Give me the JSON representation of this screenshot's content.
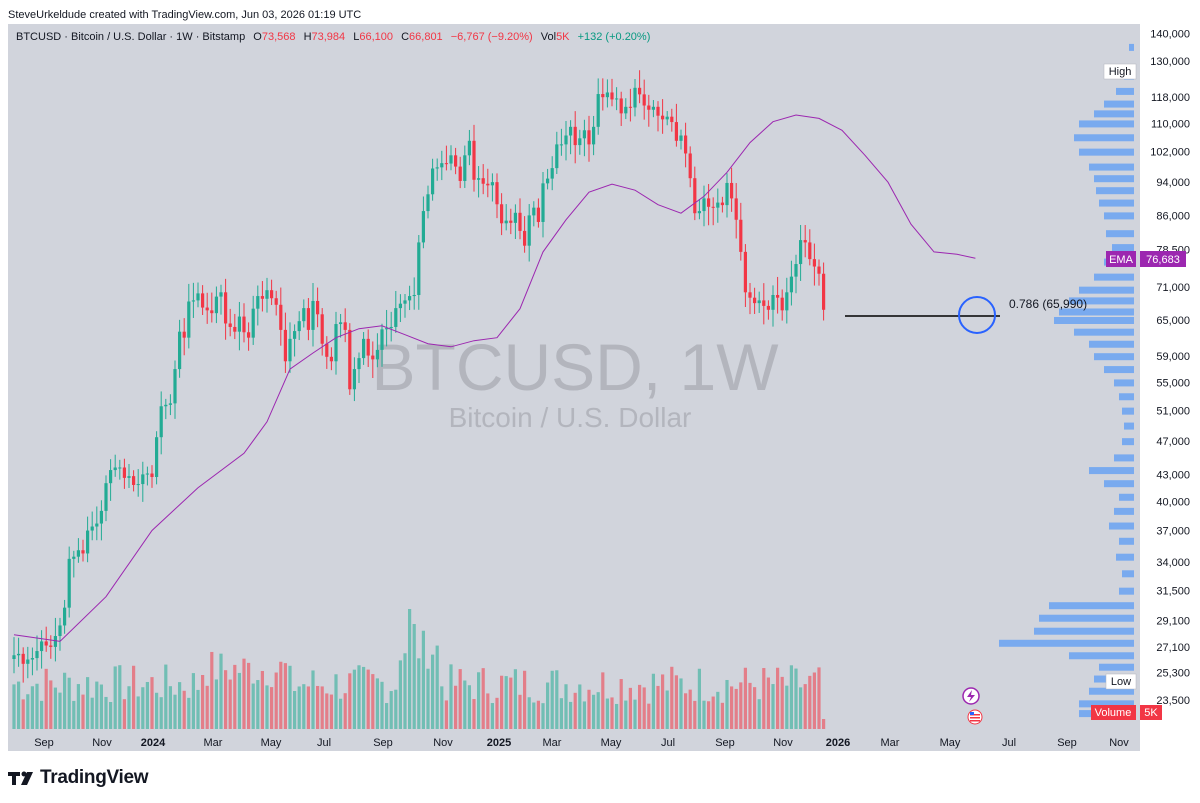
{
  "header": "SteveUrkeldude created with TradingView.com, Jun 03, 2026 01:19 UTC",
  "legend": {
    "symbol": "BTCUSD · Bitcoin / U.S. Dollar · 1W · Bitstamp",
    "o_label": "O",
    "o_value": "73,568",
    "h_label": "H",
    "h_value": "73,984",
    "l_label": "L",
    "l_value": "66,100",
    "c_label": "C",
    "c_value": "66,801",
    "change": "−6,767 (−9.20%)",
    "vol_label": "Vol",
    "vol_value": "5K",
    "vol_change": "+132 (+0.20%)"
  },
  "watermark": {
    "line1": "BTCUSD, 1W",
    "line2": "Bitcoin / U.S. Dollar"
  },
  "fib_label": "0.786 (65,990)",
  "labels": {
    "high": "High",
    "low": "Low",
    "ema": "EMA",
    "ema_value": "76,683",
    "volume": "Volume",
    "volume_value": "5K"
  },
  "footer": {
    "brand": "TradingView"
  },
  "colors": {
    "up": "#22ab94",
    "down": "#f23645",
    "ema": "#9c27b0",
    "profile": "#5b9cf6",
    "fib_line": "#000000",
    "circle": "#2962ff"
  },
  "chart_data": {
    "type": "candlestick",
    "symbol": "BTCUSD",
    "interval": "1W",
    "exchange": "Bitstamp",
    "y_scale": "log",
    "ylim": [
      22500,
      140000
    ],
    "price_ticks": [
      "140,000",
      "130,000",
      "118,000",
      "110,000",
      "102,000",
      "94,000",
      "86,000",
      "78,500",
      "71,000",
      "65,000",
      "59,000",
      "55,000",
      "51,000",
      "47,000",
      "43,000",
      "40,000",
      "37,000",
      "34,000",
      "31,500",
      "29,100",
      "27,100",
      "25,300",
      "23,500"
    ],
    "time_ticks": [
      "Sep",
      "Nov",
      "2024",
      "Mar",
      "May",
      "Jul",
      "Sep",
      "Nov",
      "2025",
      "Mar",
      "May",
      "Jul",
      "Sep",
      "Nov",
      "2026",
      "Mar",
      "May",
      "Jul",
      "Sep",
      "Nov"
    ],
    "close": [
      26500,
      26600,
      25900,
      26200,
      26300,
      26800,
      27500,
      27200,
      27100,
      27900,
      28700,
      30100,
      34300,
      34500,
      35100,
      34800,
      37000,
      37400,
      37700,
      39000,
      42000,
      43500,
      43800,
      43800,
      42600,
      42800,
      41800,
      41900,
      43000,
      43100,
      42700,
      47500,
      51600,
      51800,
      52000,
      57000,
      63000,
      62000,
      68300,
      68500,
      69800,
      67200,
      66700,
      66200,
      69200,
      70000,
      64400,
      63800,
      63000,
      65600,
      62900,
      62000,
      67000,
      69300,
      68800,
      70400,
      68900,
      67700,
      63300,
      58200,
      61800,
      63100,
      64800,
      67100,
      63300,
      68400,
      66000,
      61000,
      58900,
      58200,
      64300,
      64600,
      63300,
      54000,
      57000,
      58700,
      61800,
      59100,
      58500,
      60000,
      63400,
      63600,
      63800,
      67100,
      67900,
      68500,
      69300,
      69500,
      80000,
      87000,
      91000,
      97500,
      97800,
      98900,
      98800,
      101000,
      98000,
      94300,
      101000,
      105000,
      94600,
      95000,
      93600,
      93200,
      94000,
      88600,
      84200,
      84800,
      84300,
      86600,
      82500,
      79300,
      86000,
      87800,
      84500,
      93700,
      94900,
      97600,
      104000,
      104000,
      106500,
      109000,
      103800,
      105700,
      108000,
      104000,
      109000,
      119000,
      118000,
      119500,
      117300,
      117600,
      113000,
      115000,
      114800,
      121000,
      118900,
      115400,
      114100,
      115000,
      112300,
      111200,
      112000,
      110400,
      105000,
      106500,
      101500,
      95000,
      86500,
      87000,
      90000,
      88000,
      87800,
      89000,
      88400,
      93800,
      90000,
      85000,
      78000,
      70000,
      69000,
      68000,
      68500,
      67500,
      66800,
      69500,
      69000,
      66700,
      70000,
      73000,
      75500,
      80500,
      80000,
      76500,
      75000,
      73568,
      66801
    ],
    "ema_sampled": [
      [
        0,
        28000
      ],
      [
        10,
        27500
      ],
      [
        20,
        31000
      ],
      [
        30,
        37000
      ],
      [
        40,
        41500
      ],
      [
        50,
        45500
      ],
      [
        55,
        49500
      ],
      [
        60,
        57000
      ],
      [
        65,
        59500
      ],
      [
        70,
        62000
      ],
      [
        75,
        63500
      ],
      [
        80,
        64000
      ],
      [
        85,
        62500
      ],
      [
        90,
        61000
      ],
      [
        95,
        60500
      ],
      [
        100,
        61500
      ],
      [
        105,
        62000
      ],
      [
        110,
        67000
      ],
      [
        115,
        78000
      ],
      [
        120,
        85000
      ],
      [
        125,
        91500
      ],
      [
        130,
        93500
      ],
      [
        135,
        92000
      ],
      [
        140,
        88500
      ],
      [
        145,
        86500
      ],
      [
        150,
        90500
      ],
      [
        155,
        96500
      ],
      [
        160,
        104500
      ],
      [
        165,
        110500
      ],
      [
        170,
        112500
      ],
      [
        175,
        111500
      ],
      [
        180,
        108000
      ],
      [
        185,
        101000
      ],
      [
        190,
        94000
      ],
      [
        195,
        84000
      ],
      [
        200,
        78000
      ],
      [
        205,
        77500
      ],
      [
        209,
        76683
      ]
    ],
    "fib_level": {
      "ratio": 0.786,
      "price": 65990
    },
    "volume_series_last": "5K"
  }
}
